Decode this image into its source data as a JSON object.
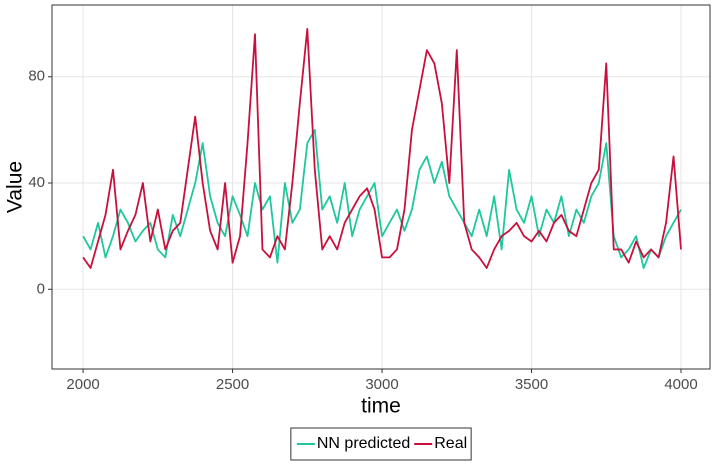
{
  "chart_data": {
    "type": "line",
    "x_label": "time",
    "y_label": "Value",
    "x": [
      2000,
      2025,
      2050,
      2075,
      2100,
      2125,
      2150,
      2175,
      2200,
      2225,
      2250,
      2275,
      2300,
      2325,
      2350,
      2375,
      2400,
      2425,
      2450,
      2475,
      2500,
      2525,
      2550,
      2575,
      2600,
      2625,
      2650,
      2675,
      2700,
      2725,
      2750,
      2775,
      2800,
      2825,
      2850,
      2875,
      2900,
      2925,
      2950,
      2975,
      3000,
      3025,
      3050,
      3075,
      3100,
      3125,
      3150,
      3175,
      3200,
      3225,
      3250,
      3275,
      3300,
      3325,
      3350,
      3375,
      3400,
      3425,
      3450,
      3475,
      3500,
      3525,
      3550,
      3575,
      3600,
      3625,
      3650,
      3675,
      3700,
      3725,
      3750,
      3775,
      3800,
      3825,
      3850,
      3875,
      3900,
      3925,
      3950,
      3975,
      4000
    ],
    "series": [
      {
        "name": "NN predicted",
        "color": "#1fc79c",
        "values": [
          20,
          15,
          25,
          12,
          20,
          30,
          25,
          18,
          22,
          25,
          15,
          12,
          28,
          20,
          30,
          40,
          55,
          35,
          25,
          20,
          35,
          28,
          20,
          40,
          30,
          35,
          10,
          40,
          25,
          30,
          55,
          60,
          30,
          35,
          25,
          40,
          20,
          30,
          35,
          40,
          20,
          25,
          30,
          22,
          30,
          45,
          50,
          40,
          48,
          35,
          30,
          25,
          20,
          30,
          20,
          35,
          15,
          45,
          30,
          25,
          35,
          20,
          30,
          25,
          35,
          20,
          30,
          25,
          35,
          40,
          55,
          20,
          12,
          15,
          20,
          8,
          15,
          12,
          20,
          25,
          30
        ]
      },
      {
        "name": "Real",
        "color": "#c8103c",
        "values": [
          12,
          8,
          18,
          28,
          45,
          15,
          22,
          28,
          40,
          18,
          30,
          15,
          22,
          25,
          45,
          65,
          40,
          22,
          15,
          40,
          10,
          20,
          55,
          96,
          15,
          12,
          20,
          15,
          40,
          70,
          98,
          45,
          15,
          20,
          15,
          25,
          30,
          35,
          38,
          30,
          12,
          12,
          15,
          30,
          60,
          75,
          90,
          85,
          70,
          40,
          90,
          25,
          15,
          12,
          8,
          15,
          20,
          22,
          25,
          20,
          18,
          22,
          18,
          25,
          28,
          22,
          20,
          30,
          40,
          45,
          85,
          15,
          15,
          10,
          18,
          12,
          15,
          12,
          25,
          50,
          15
        ]
      }
    ],
    "xlim": [
      1896,
      4097
    ],
    "ylim": [
      -30,
      107
    ],
    "xticks": [
      2000,
      2500,
      3000,
      3500,
      4000
    ],
    "yticks": [
      0,
      40,
      80
    ],
    "grid": true,
    "legend": "bottom"
  }
}
